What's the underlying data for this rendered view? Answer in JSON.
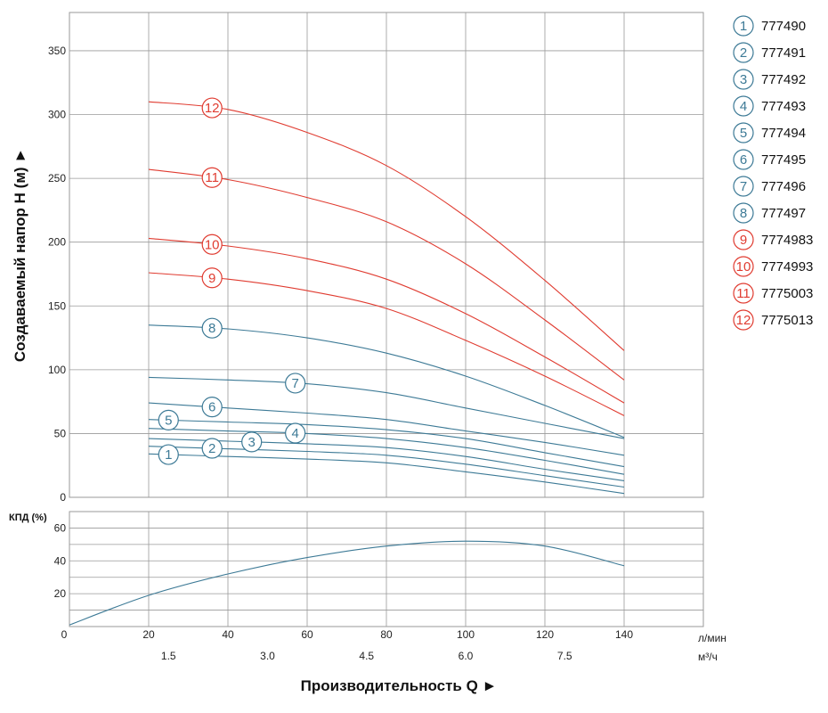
{
  "chart_data": [
    {
      "type": "line",
      "title": "",
      "ylabel": "Создаваемый напор H (м) ►",
      "ylim": [
        0,
        380
      ],
      "yticks": [
        0,
        50,
        100,
        150,
        200,
        250,
        300,
        350
      ],
      "xlim": [
        0,
        160
      ],
      "grid": true,
      "series": [
        {
          "id": "1",
          "name": "777490",
          "color": "#3d7a96",
          "label_at": 25,
          "x": [
            20,
            40,
            60,
            80,
            100,
            120,
            140
          ],
          "y": [
            34,
            32,
            30,
            27,
            20,
            12,
            3
          ]
        },
        {
          "id": "2",
          "name": "777491",
          "color": "#3d7a96",
          "label_at": 36,
          "x": [
            20,
            40,
            60,
            80,
            100,
            120,
            140
          ],
          "y": [
            40,
            38,
            36,
            33,
            26,
            17,
            8
          ]
        },
        {
          "id": "3",
          "name": "777492",
          "color": "#3d7a96",
          "label_at": 46,
          "x": [
            20,
            40,
            60,
            80,
            100,
            120,
            140
          ],
          "y": [
            46,
            44,
            42,
            39,
            32,
            22,
            13
          ]
        },
        {
          "id": "4",
          "name": "777493",
          "color": "#3d7a96",
          "label_at": 57,
          "x": [
            20,
            40,
            60,
            80,
            100,
            120,
            140
          ],
          "y": [
            54,
            52,
            50,
            46,
            39,
            29,
            18
          ]
        },
        {
          "id": "5",
          "name": "777494",
          "color": "#3d7a96",
          "label_at": 25,
          "x": [
            20,
            40,
            60,
            80,
            100,
            120,
            140
          ],
          "y": [
            61,
            59,
            57,
            53,
            46,
            35,
            24
          ]
        },
        {
          "id": "6",
          "name": "777495",
          "color": "#3d7a96",
          "label_at": 36,
          "x": [
            20,
            40,
            60,
            80,
            100,
            120,
            140
          ],
          "y": [
            74,
            70,
            66,
            61,
            52,
            43,
            33
          ]
        },
        {
          "id": "7",
          "name": "777496",
          "color": "#3d7a96",
          "label_at": 57,
          "x": [
            20,
            40,
            60,
            80,
            100,
            120,
            140
          ],
          "y": [
            94,
            92,
            89,
            82,
            70,
            58,
            46
          ]
        },
        {
          "id": "8",
          "name": "777497",
          "color": "#3d7a96",
          "label_at": 36,
          "x": [
            20,
            40,
            60,
            80,
            100,
            120,
            140
          ],
          "y": [
            135,
            132,
            125,
            113,
            95,
            72,
            47
          ]
        },
        {
          "id": "9",
          "name": "7774983",
          "color": "#e03c31",
          "label_at": 36,
          "x": [
            20,
            40,
            60,
            80,
            100,
            120,
            140
          ],
          "y": [
            176,
            171,
            162,
            148,
            123,
            95,
            64
          ]
        },
        {
          "id": "10",
          "name": "7774993",
          "color": "#e03c31",
          "label_at": 36,
          "x": [
            20,
            40,
            60,
            80,
            100,
            120,
            140
          ],
          "y": [
            203,
            197,
            187,
            171,
            144,
            110,
            74
          ]
        },
        {
          "id": "11",
          "name": "7775003",
          "color": "#e03c31",
          "label_at": 36,
          "x": [
            20,
            40,
            60,
            80,
            100,
            120,
            140
          ],
          "y": [
            257,
            249,
            235,
            216,
            183,
            139,
            92
          ]
        },
        {
          "id": "12",
          "name": "7775013",
          "color": "#e03c31",
          "label_at": 36,
          "x": [
            20,
            40,
            60,
            80,
            100,
            120,
            140
          ],
          "y": [
            310,
            304,
            286,
            260,
            220,
            170,
            115
          ]
        }
      ]
    },
    {
      "type": "line",
      "title": "",
      "ylabel": "КПД (%)",
      "ylim": [
        0,
        70
      ],
      "yticks": [
        20,
        40,
        60
      ],
      "xlim": [
        0,
        160
      ],
      "grid": true,
      "series": [
        {
          "name": "КПД",
          "color": "#3d7a96",
          "x": [
            0,
            20,
            40,
            60,
            80,
            100,
            120,
            140
          ],
          "y": [
            1,
            19,
            32,
            42,
            49,
            52,
            49,
            37
          ]
        }
      ]
    }
  ],
  "x_axis": {
    "primary_ticks": [
      "0",
      "20",
      "40",
      "60",
      "80",
      "100",
      "120",
      "140"
    ],
    "primary_values": [
      0,
      20,
      40,
      60,
      80,
      100,
      120,
      140
    ],
    "primary_unit": "л/мин",
    "secondary_ticks": [
      "1.5",
      "3.0",
      "4.5",
      "6.0",
      "7.5"
    ],
    "secondary_values": [
      25,
      50,
      75,
      100,
      125
    ],
    "secondary_unit": "м³/ч",
    "title": "Производительность Q ►"
  },
  "colors": {
    "grid": "#9a9a9a",
    "frame": "#9a9a9a",
    "blue": "#3d7a96",
    "red": "#e03c31"
  }
}
